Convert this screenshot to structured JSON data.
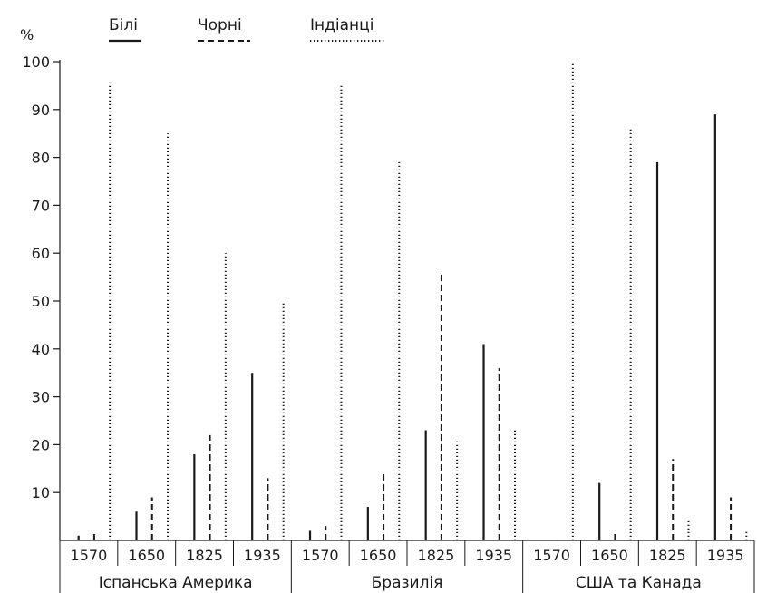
{
  "chart_data": {
    "type": "bar",
    "y_unit_label": "%",
    "ylim": [
      0,
      100
    ],
    "y_ticks": [
      10,
      20,
      30,
      40,
      50,
      60,
      70,
      80,
      90,
      100
    ],
    "y_tick_labels": [
      "10",
      "20",
      "30",
      "40",
      "50",
      "60",
      "70",
      "80",
      "90",
      "100"
    ],
    "legend_position": "top",
    "grid": false,
    "series": [
      {
        "name": "Білі",
        "line_style": "solid",
        "color": "#1a1a1a"
      },
      {
        "name": "Чорні",
        "line_style": "dashed",
        "color": "#1a1a1a"
      },
      {
        "name": "Індіанці",
        "line_style": "dotted",
        "color": "#1a1a1a"
      }
    ],
    "groups": [
      {
        "region": "Іспанська Америка",
        "years": [
          {
            "label": "1570",
            "values": [
              1,
              2,
              96
            ]
          },
          {
            "label": "1650",
            "values": [
              6,
              9,
              85
            ]
          },
          {
            "label": "1825",
            "values": [
              18,
              22,
              60
            ]
          },
          {
            "label": "1935",
            "values": [
              35,
              13,
              50
            ]
          }
        ]
      },
      {
        "region": "Бразилія",
        "years": [
          {
            "label": "1570",
            "values": [
              2,
              3,
              95
            ]
          },
          {
            "label": "1650",
            "values": [
              7,
              14,
              79
            ]
          },
          {
            "label": "1825",
            "values": [
              23,
              56,
              21
            ]
          },
          {
            "label": "1935",
            "values": [
              41,
              36,
              23
            ]
          }
        ]
      },
      {
        "region": "США та Канада",
        "years": [
          {
            "label": "1570",
            "values": [
              0,
              0,
              100
            ]
          },
          {
            "label": "1650",
            "values": [
              12,
              2,
              86
            ]
          },
          {
            "label": "1825",
            "values": [
              79,
              17,
              4
            ]
          },
          {
            "label": "1935",
            "values": [
              89,
              9,
              2
            ]
          }
        ]
      }
    ]
  }
}
